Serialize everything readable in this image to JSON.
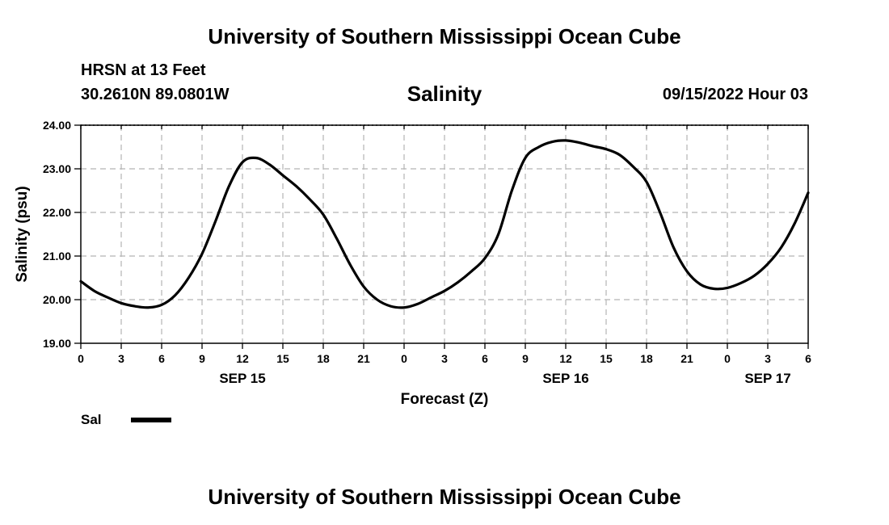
{
  "header": {
    "title": "University of Southern Mississippi Ocean Cube",
    "station": "HRSN at 13 Feet",
    "coords": "30.2610N  89.0801W",
    "timestamp": "09/15/2022 Hour 03"
  },
  "footer": {
    "title": "University of Southern Mississippi Ocean Cube"
  },
  "legend": {
    "label": "Sal"
  },
  "chart_data": {
    "type": "line",
    "title": "Salinity",
    "xlabel": "Forecast (Z)",
    "ylabel": "Salinity (psu)",
    "xlim": [
      0,
      54
    ],
    "ylim": [
      19.0,
      24.0
    ],
    "yticks": [
      "19.00",
      "20.00",
      "21.00",
      "22.00",
      "23.00",
      "24.00"
    ],
    "yticks_values": [
      19,
      20,
      21,
      22,
      23,
      24
    ],
    "xticks": [
      "0",
      "3",
      "6",
      "9",
      "12",
      "15",
      "18",
      "21",
      "0",
      "3",
      "6",
      "9",
      "12",
      "15",
      "18",
      "21",
      "0",
      "3",
      "6"
    ],
    "xticks_hours": [
      0,
      3,
      6,
      9,
      12,
      15,
      18,
      21,
      24,
      27,
      30,
      33,
      36,
      39,
      42,
      45,
      48,
      51,
      54
    ],
    "date_labels": [
      {
        "label": "SEP 15",
        "hour": 12
      },
      {
        "label": "SEP 16",
        "hour": 36
      },
      {
        "label": "SEP 17",
        "hour": 51
      }
    ],
    "grid": true,
    "series": [
      {
        "name": "Sal",
        "color": "#000000",
        "x": [
          0,
          1,
          2,
          3,
          4,
          5,
          6,
          7,
          8,
          9,
          10,
          11,
          12,
          13,
          14,
          15,
          16,
          17,
          18,
          19,
          20,
          21,
          22,
          23,
          24,
          25,
          26,
          27,
          28,
          29,
          30,
          31,
          32,
          33,
          34,
          35,
          36,
          37,
          38,
          39,
          40,
          41,
          42,
          43,
          44,
          45,
          46,
          47,
          48,
          49,
          50,
          51,
          52,
          53,
          54
        ],
        "values": [
          20.42,
          20.2,
          20.05,
          19.92,
          19.85,
          19.82,
          19.88,
          20.1,
          20.5,
          21.05,
          21.8,
          22.6,
          23.15,
          23.25,
          23.1,
          22.85,
          22.6,
          22.3,
          21.95,
          21.4,
          20.8,
          20.3,
          20.0,
          19.85,
          19.82,
          19.9,
          20.05,
          20.2,
          20.4,
          20.65,
          20.95,
          21.5,
          22.5,
          23.25,
          23.5,
          23.62,
          23.65,
          23.6,
          23.52,
          23.45,
          23.32,
          23.05,
          22.7,
          22.0,
          21.2,
          20.65,
          20.35,
          20.25,
          20.27,
          20.38,
          20.55,
          20.82,
          21.2,
          21.75,
          22.45
        ]
      }
    ]
  }
}
